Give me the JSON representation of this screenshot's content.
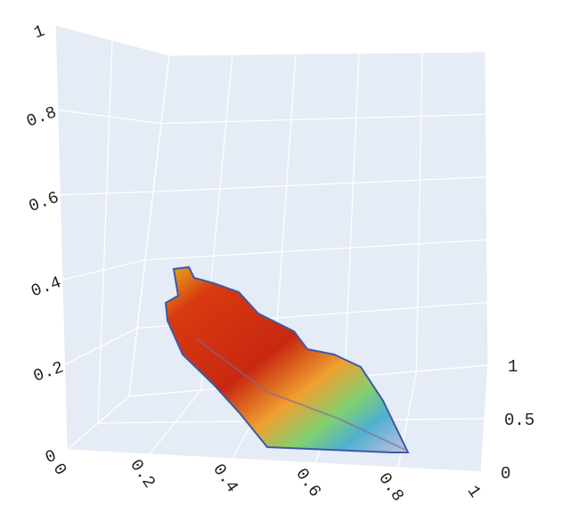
{
  "chart_data": {
    "type": "surface",
    "xlim": [
      0,
      1
    ],
    "ylim": [
      0,
      1
    ],
    "zlim": [
      0,
      1
    ],
    "xticks": [
      0,
      0.2,
      0.4,
      0.6,
      0.8,
      1
    ],
    "yticks": [
      0,
      0.5,
      1
    ],
    "zticks": [
      0,
      0.2,
      0.4,
      0.6,
      0.8,
      1
    ],
    "grid": true,
    "panel_color": "#e5ecf6"
  }
}
